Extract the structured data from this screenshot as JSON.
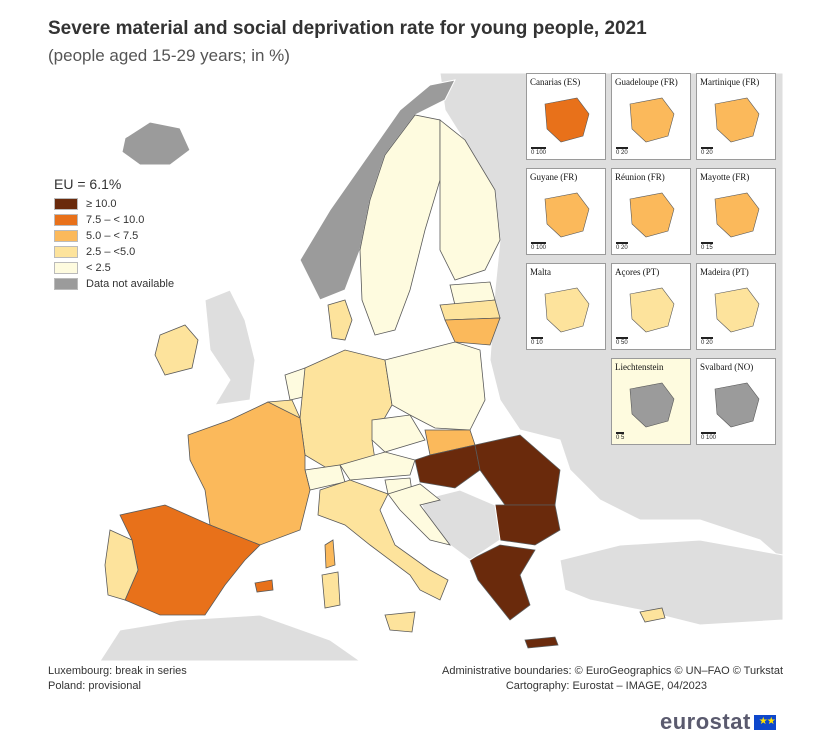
{
  "header": {
    "title": "Severe material and social deprivation rate for young people, 2021",
    "subtitle": "(people aged 15-29 years; in %)"
  },
  "legend": {
    "eu_value": "EU = 6.1%",
    "classes": [
      {
        "label": "≥ 10.0",
        "color": "#6a2a0c"
      },
      {
        "label": "7.5 – < 10.0",
        "color": "#e8711a"
      },
      {
        "label": "5.0 – < 7.5",
        "color": "#fbb95b"
      },
      {
        "label": "2.5 – <5.0",
        "color": "#fde39c"
      },
      {
        "label": "< 2.5",
        "color": "#fefbdf"
      },
      {
        "label": "Data not available",
        "color": "#9b9b9b"
      }
    ]
  },
  "colors": {
    "sea": "#ffffff",
    "non_eu_land": "#dedede",
    "borders": "#5a5a5a"
  },
  "insets": [
    {
      "name": "Canarias (ES)",
      "scale": "0   100"
    },
    {
      "name": "Guadeloupe (FR)",
      "scale": "0   20"
    },
    {
      "name": "Martinique (FR)",
      "scale": "0   20"
    },
    {
      "name": "Guyane (FR)",
      "scale": "0   100"
    },
    {
      "name": "Réunion (FR)",
      "scale": "0   20"
    },
    {
      "name": "Mayotte (FR)",
      "scale": "0   15"
    },
    {
      "name": "Malta",
      "scale": "0   10"
    },
    {
      "name": "Açores (PT)",
      "scale": "0   50"
    },
    {
      "name": "Madeira (PT)",
      "scale": "0   20"
    },
    {
      "name": "Liechtenstein",
      "scale": "0   5"
    },
    {
      "name": "Svalbard (NO)",
      "scale": "0   100"
    }
  ],
  "footnotes": {
    "left_1": "Luxembourg: break in series",
    "left_2": "Poland: provisional",
    "right_1": "Administrative boundaries: © EuroGeographics © UN–FAO © Turkstat",
    "right_2": "Cartography: Eurostat – IMAGE, 04/2023"
  },
  "logo": {
    "text": "eurostat"
  }
}
